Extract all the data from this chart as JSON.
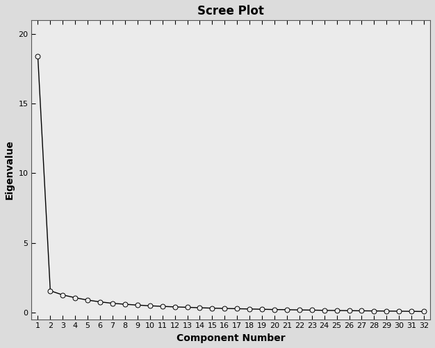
{
  "title": "Scree Plot",
  "xlabel": "Component Number",
  "ylabel": "Eigenvalue",
  "fig_background_color": "#dcdcdc",
  "plot_background_color": "#ebebeb",
  "line_color": "#000000",
  "marker_facecolor": "#ebebeb",
  "marker_edge_color": "#000000",
  "spine_color": "#555555",
  "xlim": [
    0.5,
    32.5
  ],
  "ylim": [
    -0.5,
    21
  ],
  "yticks": [
    0,
    5,
    10,
    15,
    20
  ],
  "xticks": [
    1,
    2,
    3,
    4,
    5,
    6,
    7,
    8,
    9,
    10,
    11,
    12,
    13,
    14,
    15,
    16,
    17,
    18,
    19,
    20,
    21,
    22,
    23,
    24,
    25,
    26,
    27,
    28,
    29,
    30,
    31,
    32
  ],
  "eigenvalues": [
    18.4,
    1.55,
    1.25,
    1.05,
    0.88,
    0.75,
    0.65,
    0.58,
    0.52,
    0.47,
    0.43,
    0.39,
    0.36,
    0.33,
    0.3,
    0.28,
    0.26,
    0.24,
    0.22,
    0.2,
    0.19,
    0.17,
    0.16,
    0.14,
    0.13,
    0.12,
    0.11,
    0.1,
    0.09,
    0.08,
    0.07,
    0.06
  ],
  "title_fontsize": 12,
  "label_fontsize": 10,
  "tick_fontsize": 8,
  "marker_size": 5,
  "line_width": 1.0
}
